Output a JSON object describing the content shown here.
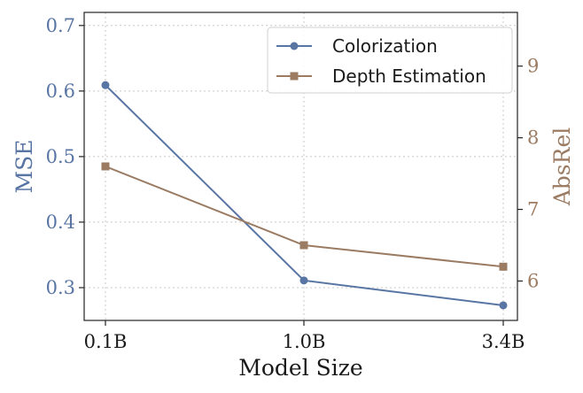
{
  "chart_data": {
    "type": "line",
    "xlabel": "Model Size",
    "ylabel_left": "MSE",
    "ylabel_right": "AbsRel",
    "categories": [
      "0.1B",
      "1.0B",
      "3.4B"
    ],
    "left_axis": {
      "ylim": [
        0.25,
        0.72
      ],
      "ticks": [
        0.3,
        0.4,
        0.5,
        0.6,
        0.7
      ],
      "tick_labels": [
        "0.3",
        "0.4",
        "0.5",
        "0.6",
        "0.7"
      ]
    },
    "right_axis": {
      "ylim": [
        5.45,
        9.75
      ],
      "ticks": [
        6,
        7,
        8,
        9
      ],
      "tick_labels": [
        "6",
        "7",
        "8",
        "9"
      ]
    },
    "grid": true,
    "legend_position": "top-right",
    "series": [
      {
        "name": "Colorization",
        "axis": "left",
        "marker": "circle",
        "color": "#5975a4",
        "values": [
          0.609,
          0.311,
          0.273
        ]
      },
      {
        "name": "Depth Estimation",
        "axis": "right",
        "marker": "square",
        "color": "#9b7b62",
        "values": [
          7.6,
          6.5,
          6.2
        ]
      }
    ]
  },
  "colors": {
    "left_axis": "#5975a4",
    "right_axis": "#9b7b62"
  }
}
